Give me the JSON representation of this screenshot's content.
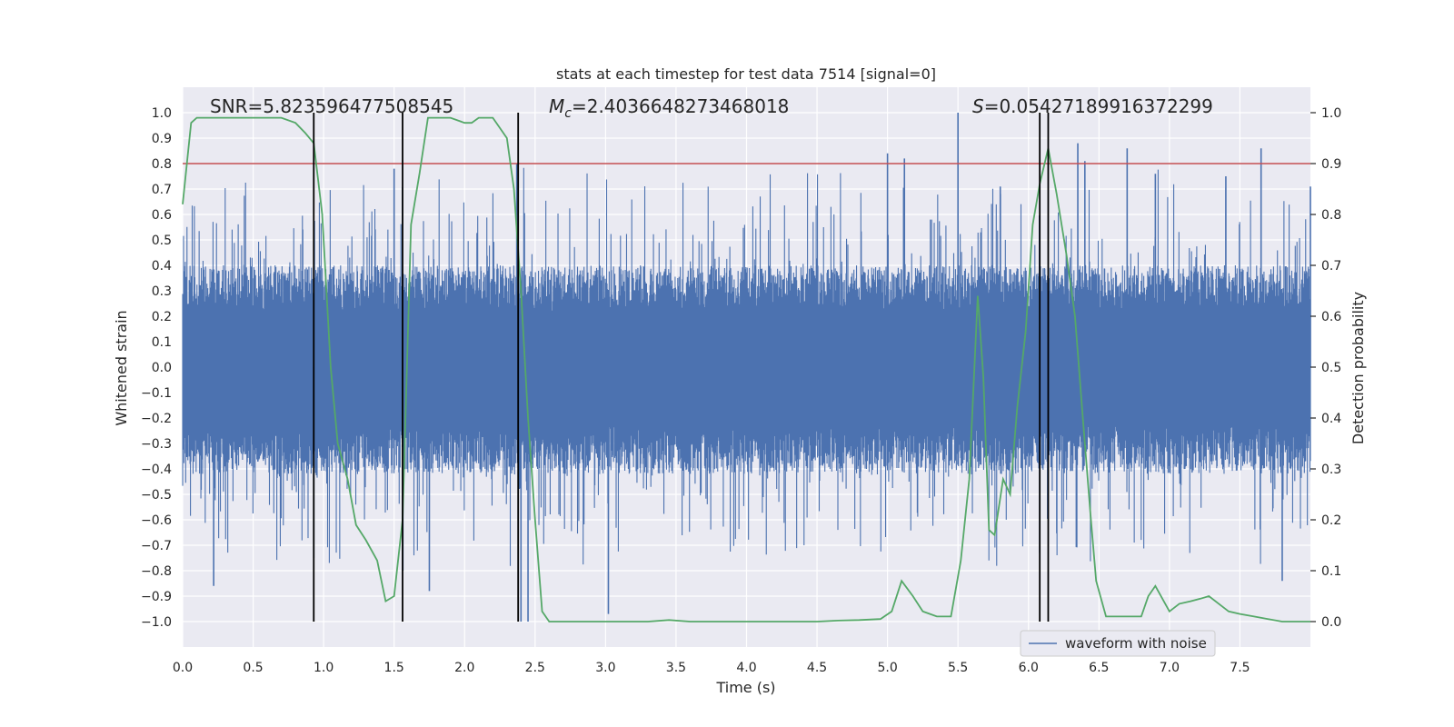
{
  "chart_data": {
    "type": "line",
    "title": "stats at each timestep for test data 7514 [signal=0]",
    "xlabel": "Time (s)",
    "ylabel": "Whitened strain",
    "y2label": "Detection probability",
    "xlim": [
      0.0,
      8.0
    ],
    "ylim": [
      -1.1,
      1.1
    ],
    "y2lim": [
      -0.05,
      1.05
    ],
    "xticks": [
      "0.0",
      "0.5",
      "1.0",
      "1.5",
      "2.0",
      "2.5",
      "3.0",
      "3.5",
      "4.0",
      "4.5",
      "5.0",
      "5.5",
      "6.0",
      "6.5",
      "7.0",
      "7.5"
    ],
    "yticks": [
      "1.0",
      "0.9",
      "0.8",
      "0.7",
      "0.6",
      "0.5",
      "0.4",
      "0.3",
      "0.2",
      "0.1",
      "0.0",
      "−0.1",
      "−0.2",
      "−0.3",
      "−0.4",
      "−0.5",
      "−0.6",
      "−0.7",
      "−0.8",
      "−0.9",
      "−1.0"
    ],
    "y2ticks": [
      "1.0",
      "0.9",
      "0.8",
      "0.7",
      "0.6",
      "0.5",
      "0.4",
      "0.3",
      "0.2",
      "0.1",
      "0.0"
    ],
    "annotations": {
      "snr": "SNR=5.823596477508545",
      "mc_symbol": "M",
      "mc_sub": "c",
      "mc_value": "=2.4036648273468018",
      "s_symbol": "S",
      "s_value": "=0.05427189916372299"
    },
    "threshold": 0.9,
    "vertical_lines": [
      0.93,
      1.56,
      2.38,
      6.08,
      6.14
    ],
    "legend": {
      "label": "waveform with noise",
      "placement": "lower-right"
    },
    "series": [
      {
        "name": "waveform with noise",
        "color": "#4c72b0",
        "envelope": {
          "typical_max": 0.4,
          "typical_min": -0.42,
          "peak_max": 1.0,
          "peak_min": -1.0
        },
        "peaks": [
          [
            0.22,
            -0.86
          ],
          [
            0.93,
            -0.75
          ],
          [
            1.5,
            0.78
          ],
          [
            1.75,
            -0.88
          ],
          [
            2.37,
            0.8
          ],
          [
            2.4,
            -1.0
          ],
          [
            2.45,
            -1.0
          ],
          [
            3.02,
            -0.97
          ],
          [
            5.0,
            0.84
          ],
          [
            5.12,
            0.82
          ],
          [
            5.5,
            1.0
          ],
          [
            5.8,
            0.71
          ],
          [
            6.08,
            -0.73
          ],
          [
            6.35,
            0.88
          ],
          [
            6.4,
            0.81
          ],
          [
            6.7,
            0.86
          ],
          [
            6.9,
            0.76
          ],
          [
            7.4,
            0.75
          ],
          [
            7.65,
            0.86
          ],
          [
            7.8,
            -0.84
          ],
          [
            8.0,
            0.71
          ]
        ]
      },
      {
        "name": "detection probability",
        "color": "#55a868",
        "x": [
          0.0,
          0.06,
          0.1,
          0.2,
          0.4,
          0.6,
          0.7,
          0.8,
          0.87,
          0.93,
          0.99,
          1.05,
          1.1,
          1.17,
          1.23,
          1.3,
          1.38,
          1.44,
          1.5,
          1.56,
          1.62,
          1.68,
          1.74,
          1.8,
          1.9,
          2.0,
          2.05,
          2.1,
          2.15,
          2.2,
          2.25,
          2.3,
          2.35,
          2.4,
          2.45,
          2.5,
          2.55,
          2.6,
          2.65,
          3.0,
          3.3,
          3.45,
          3.6,
          3.9,
          4.2,
          4.5,
          4.65,
          4.8,
          4.95,
          5.03,
          5.1,
          5.18,
          5.25,
          5.35,
          5.45,
          5.52,
          5.58,
          5.64,
          5.68,
          5.72,
          5.76,
          5.82,
          5.87,
          5.92,
          5.98,
          6.03,
          6.08,
          6.14,
          6.2,
          6.27,
          6.33,
          6.38,
          6.44,
          6.48,
          6.55,
          6.7,
          6.8,
          6.85,
          6.9,
          7.0,
          7.07,
          7.15,
          7.22,
          7.28,
          7.35,
          7.42,
          7.5,
          7.6,
          7.7,
          7.8,
          8.0
        ],
        "y": [
          0.82,
          0.98,
          0.99,
          0.99,
          0.99,
          0.99,
          0.99,
          0.98,
          0.96,
          0.94,
          0.8,
          0.5,
          0.35,
          0.28,
          0.19,
          0.16,
          0.12,
          0.04,
          0.05,
          0.2,
          0.78,
          0.88,
          0.99,
          0.99,
          0.99,
          0.98,
          0.98,
          0.99,
          0.99,
          0.99,
          0.97,
          0.95,
          0.85,
          0.65,
          0.4,
          0.2,
          0.02,
          0.0,
          0.0,
          0.0,
          0.0,
          0.003,
          0.0,
          0.0,
          0.0,
          0.0,
          0.002,
          0.003,
          0.005,
          0.02,
          0.08,
          0.05,
          0.02,
          0.01,
          0.01,
          0.12,
          0.28,
          0.64,
          0.48,
          0.18,
          0.17,
          0.28,
          0.25,
          0.42,
          0.57,
          0.78,
          0.86,
          0.93,
          0.84,
          0.72,
          0.6,
          0.42,
          0.21,
          0.08,
          0.01,
          0.01,
          0.01,
          0.05,
          0.07,
          0.02,
          0.035,
          0.04,
          0.045,
          0.05,
          0.035,
          0.02,
          0.015,
          0.01,
          0.005,
          0.0,
          0.0
        ]
      }
    ]
  }
}
